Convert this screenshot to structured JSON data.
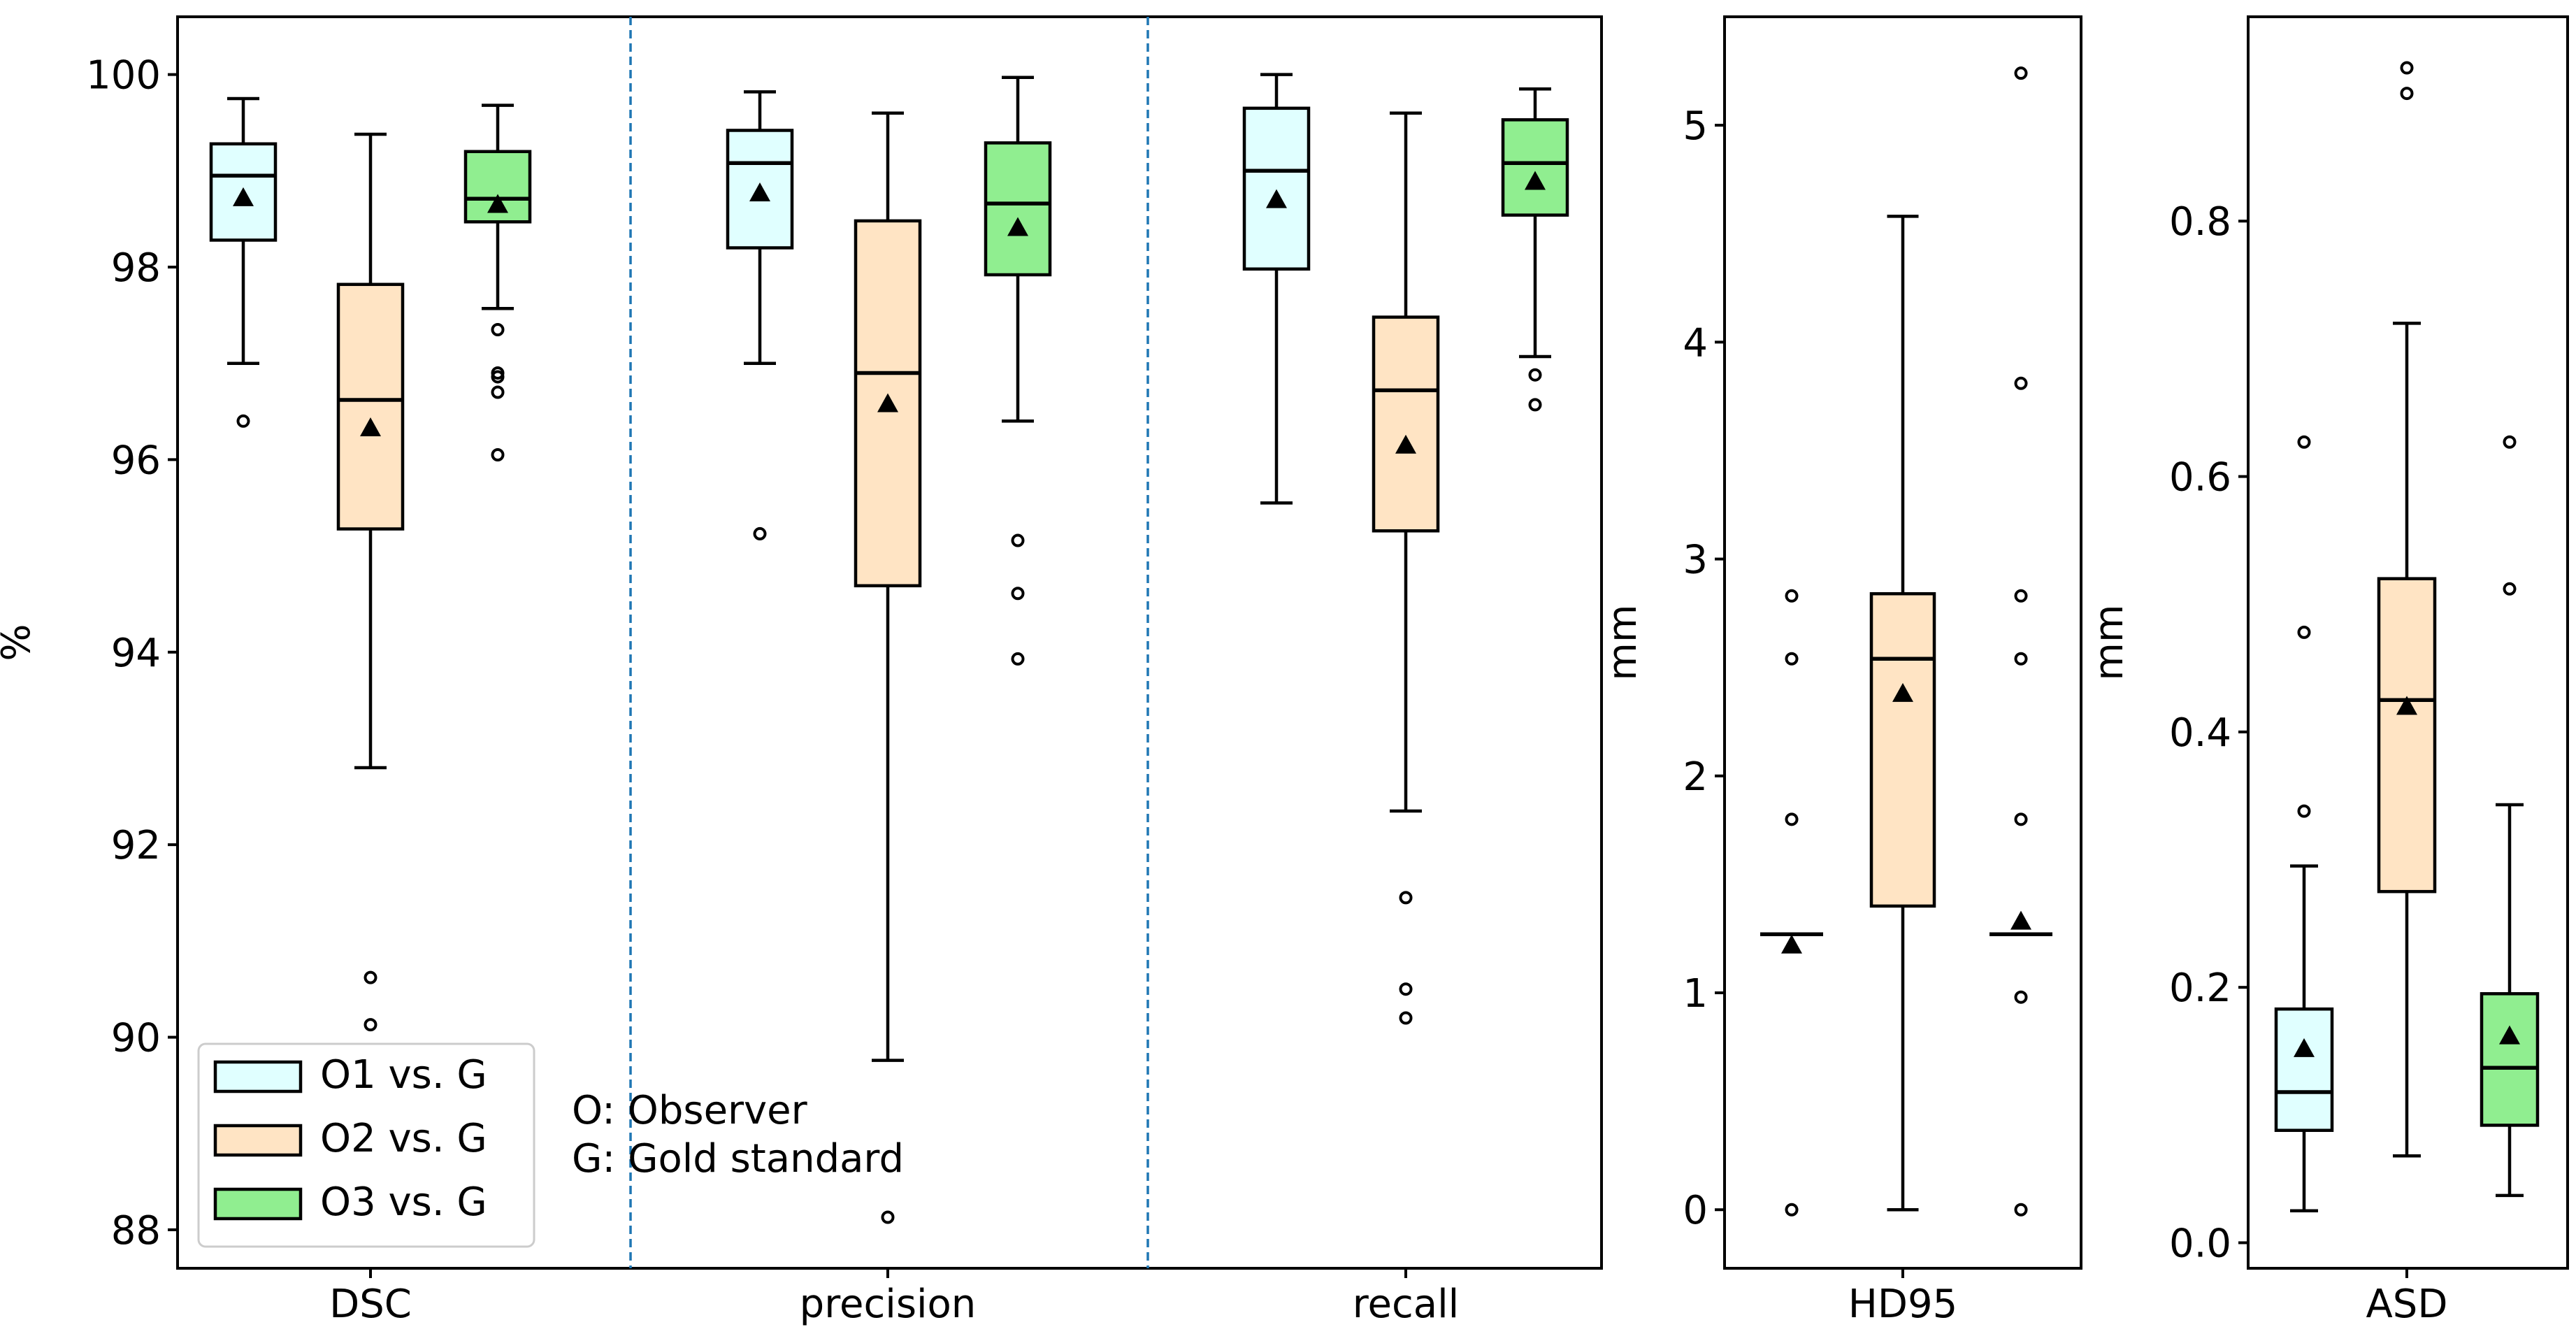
{
  "colors": {
    "O1": "#e0ffff",
    "O2": "#ffe4c4",
    "O3": "#90ee90",
    "divider": "#1f77b4"
  },
  "legend": {
    "entries": [
      {
        "label": "O1 vs. G",
        "color": "#e0ffff"
      },
      {
        "label": "O2 vs. G",
        "color": "#ffe4c4"
      },
      {
        "label": "O3 vs. G",
        "color": "#90ee90"
      }
    ],
    "note_line1": "O: Observer",
    "note_line2": "G: Gold standard",
    "placement": "lower-left"
  },
  "chart_data": [
    {
      "type": "box",
      "panel": "percent",
      "ylabel": "%",
      "ylim": [
        87.6,
        100.6
      ],
      "yticks": [
        88,
        90,
        92,
        94,
        96,
        98,
        100
      ],
      "groups": [
        {
          "label": "DSC",
          "boxes": [
            {
              "series": "O1 vs. G",
              "wlo": 97.0,
              "q1": 98.28,
              "median": 98.95,
              "q3": 99.28,
              "whi": 99.75,
              "mean": 98.72,
              "outliers": [
                96.4
              ]
            },
            {
              "series": "O2 vs. G",
              "wlo": 92.8,
              "q1": 95.28,
              "median": 96.62,
              "q3": 97.82,
              "whi": 99.38,
              "mean": 96.33,
              "outliers": [
                90.62,
                90.13
              ]
            },
            {
              "series": "O3 vs. G",
              "wlo": 97.57,
              "q1": 98.47,
              "median": 98.71,
              "q3": 99.2,
              "whi": 99.68,
              "mean": 98.65,
              "outliers": [
                97.35,
                96.9,
                96.86,
                96.7,
                96.05
              ]
            }
          ]
        },
        {
          "label": "precision",
          "boxes": [
            {
              "series": "O1 vs. G",
              "wlo": 97.0,
              "q1": 98.2,
              "median": 99.08,
              "q3": 99.42,
              "whi": 99.82,
              "mean": 98.77,
              "outliers": [
                95.23
              ]
            },
            {
              "series": "O2 vs. G",
              "wlo": 89.76,
              "q1": 94.69,
              "median": 96.9,
              "q3": 98.48,
              "whi": 99.6,
              "mean": 96.58,
              "outliers": [
                88.13
              ]
            },
            {
              "series": "O3 vs. G",
              "wlo": 96.4,
              "q1": 97.92,
              "median": 98.66,
              "q3": 99.29,
              "whi": 99.97,
              "mean": 98.41,
              "outliers": [
                95.16,
                94.61,
                93.93
              ]
            }
          ]
        },
        {
          "label": "recall",
          "boxes": [
            {
              "series": "O1 vs. G",
              "wlo": 95.55,
              "q1": 97.98,
              "median": 99.0,
              "q3": 99.65,
              "whi": 100.0,
              "mean": 98.7,
              "outliers": []
            },
            {
              "series": "O2 vs. G",
              "wlo": 92.35,
              "q1": 95.26,
              "median": 96.72,
              "q3": 97.48,
              "whi": 99.6,
              "mean": 96.15,
              "outliers": [
                91.45,
                90.5,
                90.2
              ]
            },
            {
              "series": "O3 vs. G",
              "wlo": 97.07,
              "q1": 98.54,
              "median": 99.08,
              "q3": 99.53,
              "whi": 99.85,
              "mean": 98.89,
              "outliers": [
                96.88,
                96.57
              ]
            }
          ]
        }
      ]
    },
    {
      "type": "box",
      "panel": "HD95",
      "ylabel": "mm",
      "ylim": [
        -0.27,
        5.5
      ],
      "yticks": [
        0,
        1,
        2,
        3,
        4,
        5
      ],
      "groups": [
        {
          "label": "HD95",
          "boxes": [
            {
              "series": "O1 vs. G",
              "wlo": 1.27,
              "q1": 1.27,
              "median": 1.27,
              "q3": 1.27,
              "whi": 1.27,
              "mean": 1.22,
              "outliers": [
                2.83,
                2.54,
                1.8,
                0.0
              ]
            },
            {
              "series": "O2 vs. G",
              "wlo": 0.0,
              "q1": 1.4,
              "median": 2.54,
              "q3": 2.84,
              "whi": 4.58,
              "mean": 2.38,
              "outliers": []
            },
            {
              "series": "O3 vs. G",
              "wlo": 1.27,
              "q1": 1.27,
              "median": 1.27,
              "q3": 1.27,
              "whi": 1.27,
              "mean": 1.33,
              "outliers": [
                5.24,
                3.81,
                2.83,
                2.54,
                1.8,
                0.98,
                0.0
              ]
            }
          ]
        }
      ]
    },
    {
      "type": "box",
      "panel": "ASD",
      "ylabel": "mm",
      "ylim": [
        -0.02,
        0.96
      ],
      "yticks": [
        0.0,
        0.2,
        0.4,
        0.6,
        0.8
      ],
      "groups": [
        {
          "label": "ASD",
          "boxes": [
            {
              "series": "O1 vs. G",
              "wlo": 0.025,
              "q1": 0.088,
              "median": 0.118,
              "q3": 0.183,
              "whi": 0.295,
              "mean": 0.152,
              "outliers": [
                0.627,
                0.478,
                0.338
              ]
            },
            {
              "series": "O2 vs. G",
              "wlo": 0.068,
              "q1": 0.275,
              "median": 0.425,
              "q3": 0.52,
              "whi": 0.72,
              "mean": 0.42,
              "outliers": [
                0.92,
                0.9
              ]
            },
            {
              "series": "O3 vs. G",
              "wlo": 0.037,
              "q1": 0.092,
              "median": 0.137,
              "q3": 0.195,
              "whi": 0.343,
              "mean": 0.162,
              "outliers": [
                0.627,
                0.512
              ]
            }
          ]
        }
      ]
    }
  ]
}
